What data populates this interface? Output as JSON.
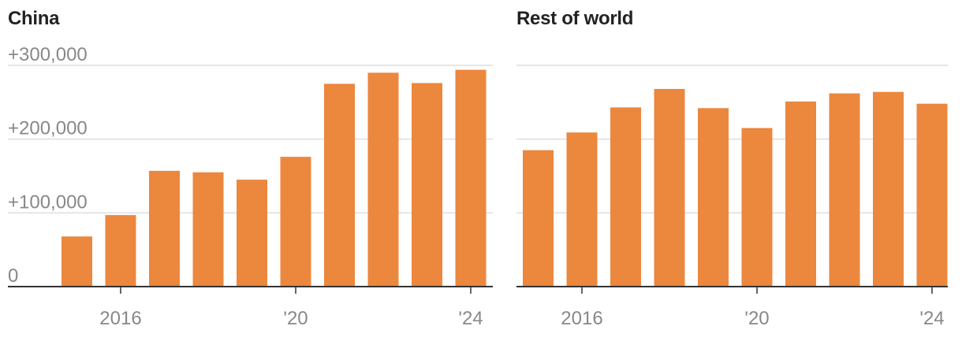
{
  "colors": {
    "bar": "#ec873e",
    "grid": "#dedede",
    "axis": "#333333",
    "tick_label": "#888888",
    "title": "#222222"
  },
  "chart_data": [
    {
      "type": "bar",
      "title": "China",
      "x": [
        2015,
        2016,
        2017,
        2018,
        2019,
        2020,
        2021,
        2022,
        2023,
        2024
      ],
      "values": [
        68000,
        97000,
        157000,
        155000,
        145000,
        176000,
        275000,
        290000,
        276000,
        294000
      ],
      "ylim": [
        0,
        300000
      ],
      "yticks": [
        0,
        100000,
        200000,
        300000
      ],
      "ytick_labels": [
        "0",
        "+100,000",
        "+200,000",
        "+300,000"
      ],
      "xticks": [
        2016,
        2020,
        2024
      ],
      "xtick_labels": [
        "2016",
        "'20",
        "'24"
      ],
      "grid": true
    },
    {
      "type": "bar",
      "title": "Rest of world",
      "x": [
        2015,
        2016,
        2017,
        2018,
        2019,
        2020,
        2021,
        2022,
        2023,
        2024
      ],
      "values": [
        185000,
        209000,
        243000,
        268000,
        242000,
        215000,
        251000,
        262000,
        264000,
        248000
      ],
      "ylim": [
        0,
        300000
      ],
      "yticks": [
        0,
        100000,
        200000,
        300000
      ],
      "ytick_labels": [
        "",
        "",
        "",
        ""
      ],
      "xticks": [
        2016,
        2020,
        2024
      ],
      "xtick_labels": [
        "2016",
        "'20",
        "'24"
      ],
      "grid": true
    }
  ]
}
